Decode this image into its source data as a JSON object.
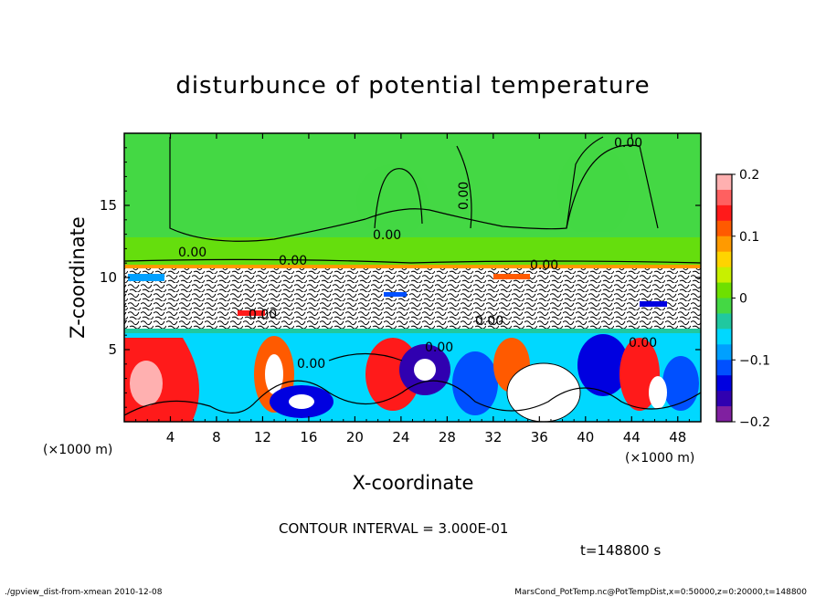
{
  "chart_data": {
    "type": "heatmap",
    "title": "disturbunce of potential temperature",
    "xlabel": "X-coordinate",
    "ylabel": "Z-coordinate",
    "x_unit": "(×1000 m)",
    "y_unit": "(×1000 m)",
    "xlim": [
      0,
      50
    ],
    "ylim": [
      0,
      20
    ],
    "x_ticks": [
      "4",
      "8",
      "12",
      "16",
      "20",
      "24",
      "28",
      "32",
      "36",
      "40",
      "44",
      "48"
    ],
    "y_ticks": [
      "5",
      "10",
      "15"
    ],
    "colorbar": {
      "range": [
        -0.2,
        0.2
      ],
      "tick_labels": [
        "0.2",
        "0.1",
        "0",
        "−0.1",
        "−0.2"
      ],
      "colors": [
        "#ffb0b0",
        "#ff6060",
        "#ff1a1a",
        "#ff5a00",
        "#ff9a00",
        "#ffd400",
        "#c8f000",
        "#6ee000",
        "#44d844",
        "#20c8a0",
        "#00d8ff",
        "#00a0ff",
        "#0050ff",
        "#0000e0",
        "#3000b0",
        "#8020a0"
      ]
    },
    "contour_labels": [
      "0.00",
      "0.00",
      "0.00",
      "0.00",
      "0.00",
      "0.00",
      "0.00",
      "0.00",
      "0.00",
      "0.00",
      "0.00"
    ],
    "annotations": {
      "contour_interval": "CONTOUR INTERVAL = 3.000E-01",
      "time": "t=148800  s"
    },
    "colors": {
      "background_green": "#44d844",
      "positive": "#ff1a1a",
      "negative": "#0000e0"
    }
  },
  "footer": {
    "left": "./gpview_dist-from-xmean   2010-12-08",
    "right": "MarsCond_PotTemp.nc@PotTempDist,x=0:50000,z=0:20000,t=148800"
  }
}
